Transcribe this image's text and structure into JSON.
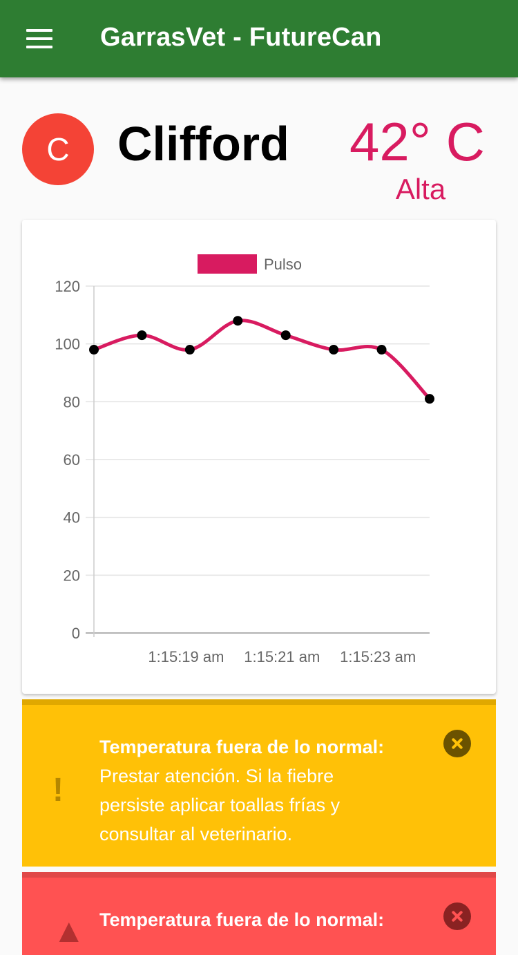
{
  "app": {
    "title": "GarrasVet - FutureCan"
  },
  "pet": {
    "initial": "C",
    "name": "Clifford",
    "temperature": "42° C",
    "temperature_status": "Alta"
  },
  "chart_data": {
    "type": "line",
    "series": [
      {
        "name": "Pulso",
        "color": "#d81b60",
        "values": [
          98,
          103,
          98,
          108,
          103,
          98,
          98,
          81
        ]
      }
    ],
    "x_tick_labels": [
      "1:15:19 am",
      "1:15:21 am",
      "1:15:23 am"
    ],
    "yticks": [
      0,
      20,
      40,
      60,
      80,
      100,
      120
    ],
    "ylim": [
      0,
      120
    ],
    "legend": "top",
    "grid": true
  },
  "alerts": [
    {
      "type": "warning",
      "icon": "!",
      "title": "Temperatura fuera de lo normal:",
      "message": "Prestar atención. Si la fiebre persiste aplicar toallas frías y consultar al veterinario."
    },
    {
      "type": "danger",
      "icon": "▲",
      "title": "Temperatura fuera de lo normal:",
      "message": ""
    }
  ],
  "colors": {
    "appbar": "#2e7d32",
    "accent": "#d81b60",
    "avatar": "#f44336",
    "warning": "#ffc107",
    "danger": "#ff5252"
  }
}
